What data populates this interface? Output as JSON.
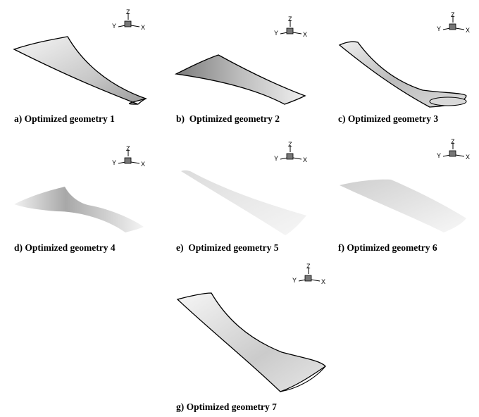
{
  "figure": {
    "panels": [
      {
        "id": "a",
        "caption": "a) Optimized geometry 1"
      },
      {
        "id": "b",
        "caption": "b)  Optimized geometry 2"
      },
      {
        "id": "c",
        "caption": "c) Optimized geometry 3"
      },
      {
        "id": "d",
        "caption": "d) Optimized geometry 4"
      },
      {
        "id": "e",
        "caption": "e)  Optimized geometry 5"
      },
      {
        "id": "f",
        "caption": "f) Optimized geometry 6"
      },
      {
        "id": "g",
        "caption": "g) Optimized geometry 7"
      }
    ],
    "axis_labels": {
      "z": "Z",
      "y": "Y",
      "x": "X"
    }
  },
  "colors": {
    "surface_light": "#f2f2f2",
    "surface_dark": "#8c8c8c",
    "edge": "#000000"
  }
}
